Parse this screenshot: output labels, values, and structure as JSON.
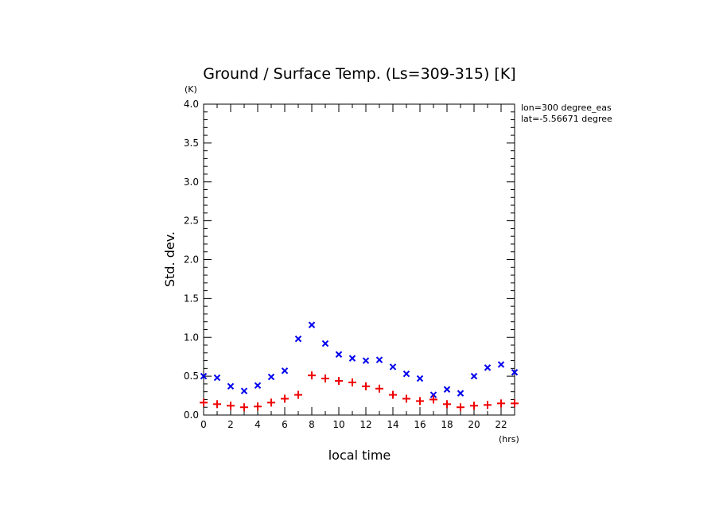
{
  "chart_data": {
    "type": "scatter",
    "title": "Ground / Surface Temp. (Ls=309-315) [K]",
    "xlabel": "local time",
    "ylabel": "Std. dev.",
    "x_unit": "(hrs)",
    "y_unit": "(K)",
    "xlim": [
      0,
      23
    ],
    "ylim": [
      0,
      4.0
    ],
    "x_ticks": [
      0,
      2,
      4,
      6,
      8,
      10,
      12,
      14,
      16,
      18,
      20,
      22
    ],
    "x_tick_labels": [
      "0",
      "2",
      "4",
      "6",
      "8",
      "10",
      "12",
      "14",
      "16",
      "18",
      "20",
      "22"
    ],
    "y_ticks": [
      0,
      0.5,
      1.0,
      1.5,
      2.0,
      2.5,
      3.0,
      3.5,
      4.0
    ],
    "y_tick_labels": [
      "0.0",
      "0.5",
      "1.0",
      "1.5",
      "2.0",
      "2.5",
      "3.0",
      "3.5",
      "4.0"
    ],
    "grid": false,
    "annotations": [
      "lon=300 degree_eas",
      "lat=-5.56671 degree"
    ],
    "x": [
      0,
      1,
      2,
      3,
      4,
      5,
      6,
      7,
      8,
      9,
      10,
      11,
      12,
      13,
      14,
      15,
      16,
      17,
      18,
      19,
      20,
      21,
      22,
      23
    ],
    "series": [
      {
        "marker": "x",
        "color": "#0000ee",
        "values": [
          0.5,
          0.48,
          0.37,
          0.31,
          0.38,
          0.49,
          0.57,
          0.98,
          1.16,
          0.92,
          0.78,
          0.73,
          0.7,
          0.71,
          0.62,
          0.53,
          0.47,
          0.26,
          0.33,
          0.28,
          0.5,
          0.61,
          0.65,
          0.55
        ]
      },
      {
        "marker": "+",
        "color": "#ee0000",
        "values": [
          0.16,
          0.14,
          0.12,
          0.1,
          0.11,
          0.16,
          0.21,
          0.26,
          0.51,
          0.47,
          0.44,
          0.42,
          0.37,
          0.34,
          0.26,
          0.21,
          0.18,
          0.2,
          0.14,
          0.1,
          0.12,
          0.13,
          0.15,
          0.15
        ]
      }
    ]
  }
}
